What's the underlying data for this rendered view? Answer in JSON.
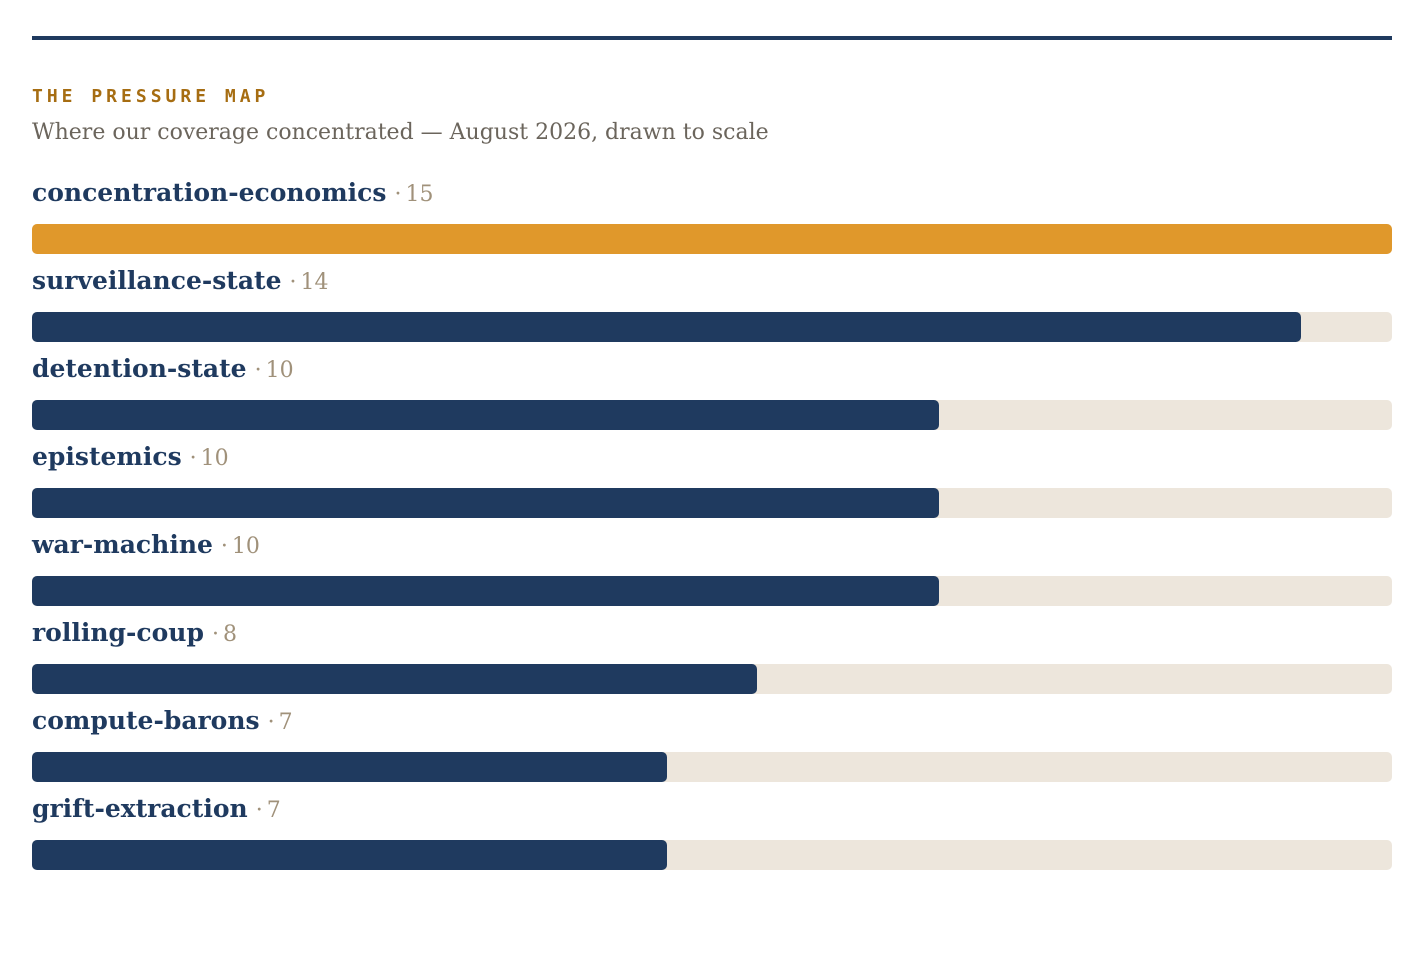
{
  "header": {
    "kicker": "THE PRESSURE MAP",
    "subtitle": "Where our coverage concentrated — August 2026, drawn to scale"
  },
  "colors": {
    "rule": "#1f3a5f",
    "bar": "#1f3a5f",
    "top_bar": "#e0982b",
    "track": "#ede6dc",
    "kicker": "#a66d12",
    "count": "#a0917a"
  },
  "chart_data": {
    "type": "bar",
    "orientation": "horizontal",
    "title": "THE PRESSURE MAP",
    "subtitle": "Where our coverage concentrated — August 2026, drawn to scale",
    "categories": [
      "concentration-economics",
      "surveillance-state",
      "detention-state",
      "epistemics",
      "war-machine",
      "rolling-coup",
      "compute-barons",
      "grift-extraction"
    ],
    "values": [
      15,
      14,
      10,
      10,
      10,
      8,
      7,
      7
    ],
    "xlim": [
      0,
      15
    ],
    "grid": false,
    "separator": "·",
    "highlight_index": 0
  }
}
